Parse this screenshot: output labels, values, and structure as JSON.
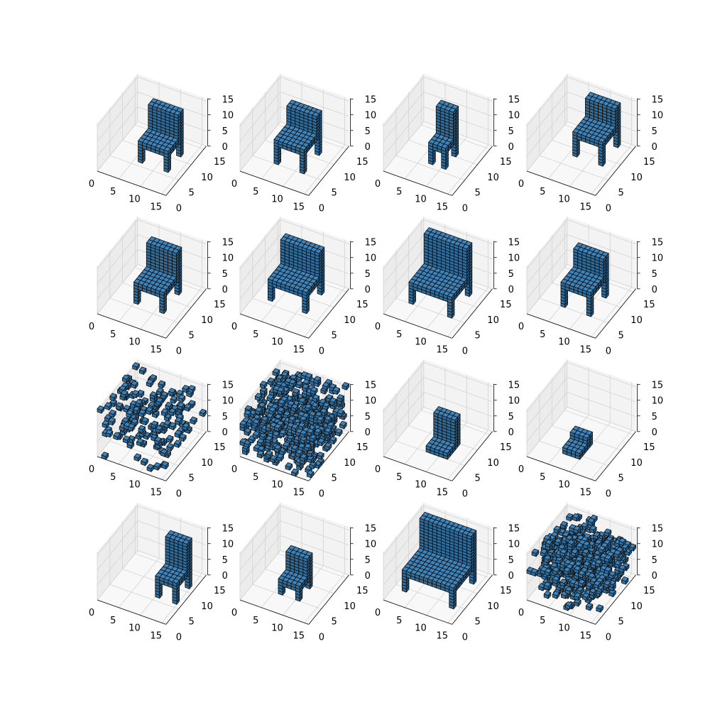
{
  "figure": {
    "rows": 4,
    "cols": 4,
    "background": "#ffffff"
  },
  "style": {
    "voxel_top": "#3d84bd",
    "voxel_left": "#2e6e9f",
    "voxel_right": "#235a86",
    "voxel_edge": "#111111",
    "pane_left": "#ececec",
    "pane_back": "#f3f3f3",
    "pane_floor": "#f8f8f8",
    "grid": "#d3d3d3"
  },
  "chart_data": [
    {
      "type": "voxel",
      "shape": "chair",
      "variant": "tall-back"
    },
    {
      "type": "voxel",
      "shape": "chair",
      "variant": "stool-legs"
    },
    {
      "type": "voxel",
      "shape": "chair",
      "variant": "narrow"
    },
    {
      "type": "voxel",
      "shape": "chair",
      "variant": "rotated"
    },
    {
      "type": "voxel",
      "shape": "chair",
      "variant": "standard"
    },
    {
      "type": "voxel",
      "shape": "chair",
      "variant": "wide"
    },
    {
      "type": "voxel",
      "shape": "chair",
      "variant": "wide-tall-back"
    },
    {
      "type": "voxel",
      "shape": "chair",
      "variant": "stool-legs"
    },
    {
      "type": "voxel",
      "shape": "scatter",
      "variant": "sparse-noise"
    },
    {
      "type": "voxel",
      "shape": "scatter",
      "variant": "dense-noise"
    },
    {
      "type": "voxel",
      "shape": "chair",
      "variant": "legless"
    },
    {
      "type": "voxel",
      "shape": "chair",
      "variant": "small-legless"
    },
    {
      "type": "voxel",
      "shape": "chair",
      "variant": "tall-back-narrow"
    },
    {
      "type": "voxel",
      "shape": "chair",
      "variant": "small"
    },
    {
      "type": "voxel",
      "shape": "chair",
      "variant": "large"
    },
    {
      "type": "voxel",
      "shape": "scatter",
      "variant": "dense-blob"
    }
  ],
  "axes": {
    "x_ticks": [
      "0",
      "5",
      "10",
      "15"
    ],
    "y_ticks": [
      "0",
      "5",
      "10",
      "15"
    ],
    "z_ticks": [
      "0",
      "5",
      "10",
      "15"
    ],
    "range": [
      0,
      16
    ]
  }
}
